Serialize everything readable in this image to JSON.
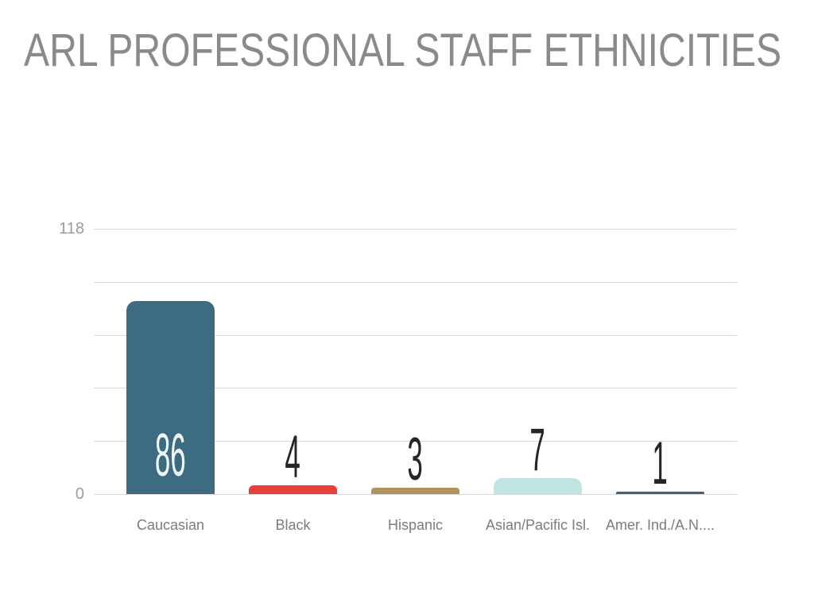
{
  "chart_data": {
    "type": "bar",
    "title": "ARL PROFESSIONAL STAFF ETHNICITIES",
    "categories": [
      "Caucasian",
      "Black",
      "Hispanic",
      "Asian/Pacific Isl.",
      "Amer. Ind./A.N...."
    ],
    "values": [
      86,
      4,
      3,
      7,
      1
    ],
    "value_labels": [
      "86",
      "4",
      "3",
      "7",
      "1"
    ],
    "bar_colors": [
      "#3d6b81",
      "#e9403a",
      "#af945b",
      "#c0e4e2",
      "#3c627c"
    ],
    "value_label_colors": [
      "#f2f6f7",
      "#262626",
      "#262626",
      "#262626",
      "#262626"
    ],
    "value_label_inside": [
      true,
      false,
      false,
      false,
      false
    ],
    "xlabel": "",
    "ylabel": "",
    "ylim": [
      0,
      118
    ],
    "y_axis": {
      "max_label": "118",
      "min_label": "0"
    },
    "gridline_count": 6,
    "grid": true,
    "legend": false,
    "colors": {
      "title_text": "#8a8a8a",
      "tick_text": "#9b9b9b",
      "category_text": "#7c7c7c",
      "gridline": "#d9d9d9",
      "background": "#ffffff"
    }
  }
}
